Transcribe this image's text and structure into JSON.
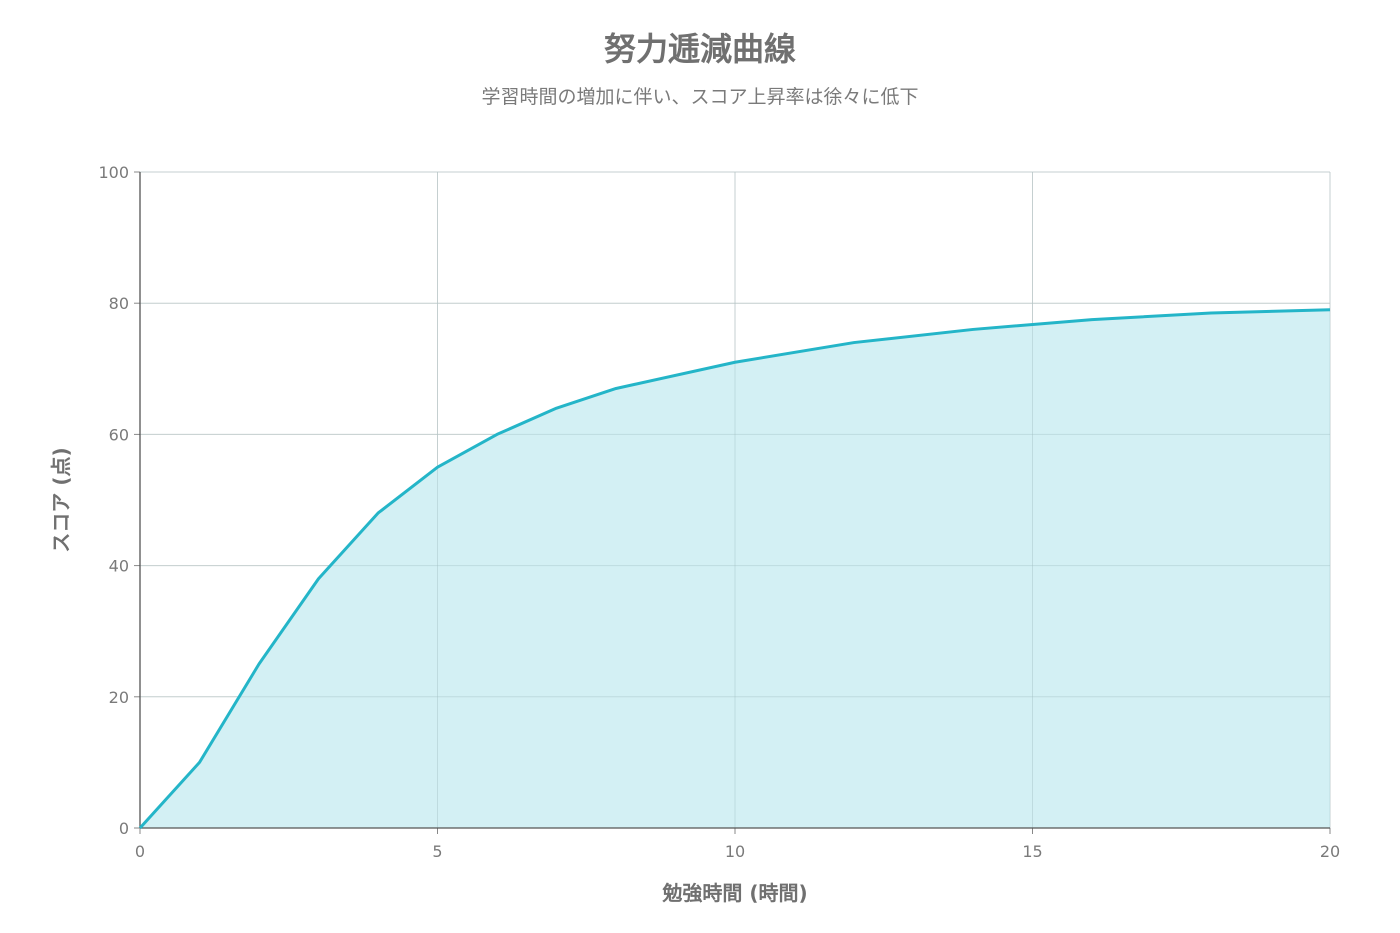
{
  "chart_data": {
    "type": "area",
    "title": "努力逓減曲線",
    "subtitle": "学習時間の増加に伴い、スコア上昇率は徐々に低下",
    "xlabel": "勉強時間 (時間)",
    "ylabel": "スコア (点)",
    "xlim": [
      0,
      20
    ],
    "ylim": [
      0,
      100
    ],
    "x_ticks": [
      0,
      5,
      10,
      15,
      20
    ],
    "y_ticks": [
      0,
      20,
      40,
      60,
      80,
      100
    ],
    "grid": true,
    "series": [
      {
        "x": [
          0,
          1,
          2,
          3,
          4,
          5,
          6,
          7,
          8,
          10,
          12,
          14,
          16,
          18,
          20
        ],
        "values": [
          0,
          10,
          25,
          38,
          48,
          55,
          60,
          64,
          67,
          71,
          74,
          76,
          77.5,
          78.5,
          79
        ],
        "color": "#24b5c8",
        "fill": "#d1eff3"
      }
    ]
  }
}
